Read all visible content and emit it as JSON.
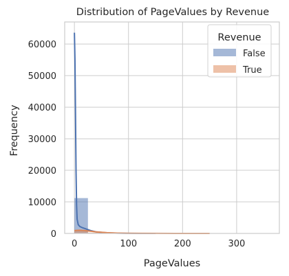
{
  "chart_data": {
    "type": "histogram",
    "title": "Distribution of PageValues by Revenue",
    "xlabel": "PageValues",
    "ylabel": "Frequency",
    "xlim": [
      -18,
      379
    ],
    "ylim": [
      0,
      67000
    ],
    "xticks": [
      0,
      100,
      200,
      300
    ],
    "yticks": [
      0,
      10000,
      20000,
      30000,
      40000,
      50000,
      60000
    ],
    "grid": true,
    "legend": {
      "title": "Revenue",
      "position": "top-right"
    },
    "bin_edges": [
      0,
      25,
      50,
      75,
      100,
      125,
      150,
      175,
      200,
      225,
      250,
      275,
      300,
      325,
      350,
      375
    ],
    "series": [
      {
        "name": "False",
        "color": "#4c72b0",
        "counts": [
          11200,
          140,
          25,
          10,
          5,
          3,
          2,
          1,
          1,
          0,
          0,
          0,
          0,
          0,
          0
        ],
        "kde": [
          [
            0,
            63600
          ],
          [
            1,
            55000
          ],
          [
            2,
            38000
          ],
          [
            3,
            20000
          ],
          [
            4,
            9000
          ],
          [
            5,
            4500
          ],
          [
            7,
            2800
          ],
          [
            10,
            2200
          ],
          [
            15,
            1800
          ],
          [
            20,
            1500
          ],
          [
            30,
            900
          ],
          [
            40,
            500
          ],
          [
            60,
            200
          ],
          [
            80,
            80
          ],
          [
            100,
            30
          ],
          [
            120,
            10
          ],
          [
            150,
            0
          ]
        ]
      },
      {
        "name": "True",
        "color": "#dd8452",
        "counts": [
          750,
          250,
          90,
          40,
          20,
          10,
          6,
          3,
          2,
          1,
          1,
          0,
          0,
          1,
          1
        ],
        "kde": [
          [
            0,
            900
          ],
          [
            5,
            980
          ],
          [
            10,
            1000
          ],
          [
            20,
            900
          ],
          [
            30,
            700
          ],
          [
            40,
            500
          ],
          [
            60,
            250
          ],
          [
            80,
            120
          ],
          [
            100,
            60
          ],
          [
            150,
            20
          ],
          [
            200,
            5
          ],
          [
            250,
            0
          ]
        ]
      }
    ]
  }
}
